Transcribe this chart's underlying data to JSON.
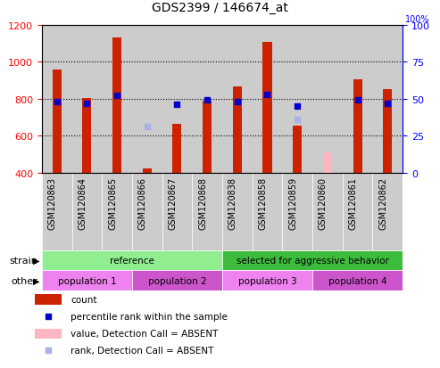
{
  "title": "GDS2399 / 146674_at",
  "samples": [
    "GSM120863",
    "GSM120864",
    "GSM120865",
    "GSM120866",
    "GSM120867",
    "GSM120868",
    "GSM120838",
    "GSM120858",
    "GSM120859",
    "GSM120860",
    "GSM120861",
    "GSM120862"
  ],
  "counts": [
    960,
    805,
    1130,
    420,
    665,
    790,
    865,
    1110,
    655,
    420,
    905,
    850
  ],
  "percentile_ranks": [
    48,
    47,
    52,
    null,
    46,
    49,
    48,
    53,
    45,
    null,
    49,
    47
  ],
  "absent_count": [
    null,
    null,
    null,
    null,
    null,
    null,
    null,
    null,
    null,
    510,
    null,
    null
  ],
  "absent_rank": [
    null,
    null,
    null,
    650,
    null,
    null,
    null,
    null,
    690,
    null,
    null,
    null
  ],
  "bar_bottom": 400,
  "ylim_left": [
    400,
    1200
  ],
  "ylim_right": [
    0,
    100
  ],
  "yticks_left": [
    400,
    600,
    800,
    1000,
    1200
  ],
  "yticks_right": [
    0,
    25,
    50,
    75,
    100
  ],
  "strain_groups": [
    {
      "label": "reference",
      "start": 0,
      "end": 6,
      "color": "#90ee90"
    },
    {
      "label": "selected for aggressive behavior",
      "start": 6,
      "end": 12,
      "color": "#3dbb3d"
    }
  ],
  "population_groups": [
    {
      "label": "population 1",
      "start": 0,
      "end": 3,
      "color": "#ee82ee"
    },
    {
      "label": "population 2",
      "start": 3,
      "end": 6,
      "color": "#cc55cc"
    },
    {
      "label": "population 3",
      "start": 6,
      "end": 9,
      "color": "#ee82ee"
    },
    {
      "label": "population 4",
      "start": 9,
      "end": 12,
      "color": "#cc55cc"
    }
  ],
  "bar_color": "#cc2200",
  "absent_bar_color": "#ffb6c1",
  "rank_dot_color": "#0000cc",
  "absent_rank_color": "#aab0e8",
  "col_bg_color": "#cccccc",
  "legend_items": [
    {
      "label": "count",
      "color": "#cc2200",
      "is_rank": false
    },
    {
      "label": "percentile rank within the sample",
      "color": "#0000cc",
      "is_rank": true
    },
    {
      "label": "value, Detection Call = ABSENT",
      "color": "#ffb6c1",
      "is_rank": false
    },
    {
      "label": "rank, Detection Call = ABSENT",
      "color": "#aab0e8",
      "is_rank": true
    }
  ]
}
